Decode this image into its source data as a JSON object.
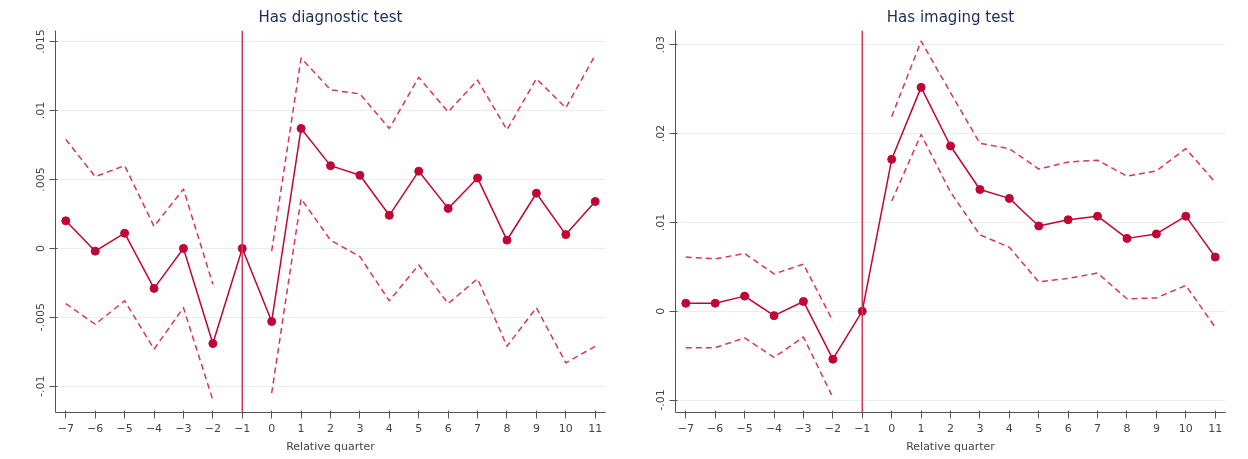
{
  "chart_data": [
    {
      "type": "line",
      "title": "Has diagnostic test",
      "xlabel": "Relative quarter",
      "x": [
        -7,
        -6,
        -5,
        -4,
        -3,
        -2,
        -1,
        0,
        1,
        2,
        3,
        4,
        5,
        6,
        7,
        8,
        9,
        10,
        11
      ],
      "xlim": [
        -7.35,
        11.35
      ],
      "xticks": [
        -7,
        -6,
        -5,
        -4,
        -3,
        -2,
        -1,
        0,
        1,
        2,
        3,
        4,
        5,
        6,
        7,
        8,
        9,
        10,
        11
      ],
      "ylim": [
        -0.0119,
        0.0158
      ],
      "yticks": [
        {
          "value": -0.01,
          "label": "-.01"
        },
        {
          "value": -0.005,
          "label": "-.005"
        },
        0,
        {
          "value": 0.005,
          "label": ".005"
        },
        {
          "value": 0.01,
          "label": ".01"
        },
        {
          "value": 0.015,
          "label": ".015"
        }
      ],
      "grid": "y",
      "series": [
        {
          "color": "#c10534",
          "marker": "circle",
          "line_style": "solid",
          "values": [
            0.002,
            -0.0002,
            0.0011,
            -0.0029,
            0.0,
            -0.0069,
            0.0,
            -0.0053,
            0.0087,
            0.006,
            0.0053,
            0.0024,
            0.0056,
            0.0029,
            0.0051,
            0.0006,
            0.004,
            0.001,
            0.0034
          ]
        },
        {
          "color": "#d6375c",
          "marker": "none",
          "line_style": "dashed",
          "values": [
            0.0079,
            0.0052,
            0.006,
            0.0016,
            0.0043,
            -0.0026,
            null,
            -0.0002,
            0.0138,
            0.0115,
            0.0112,
            0.0087,
            0.0124,
            0.0099,
            0.0122,
            0.0086,
            0.0123,
            0.0102,
            0.014
          ]
        },
        {
          "color": "#d6375c",
          "marker": "none",
          "line_style": "dashed",
          "values": [
            -0.004,
            -0.0055,
            -0.0038,
            -0.0073,
            -0.0043,
            -0.011,
            null,
            -0.0105,
            0.0036,
            0.0006,
            -0.0006,
            -0.0038,
            -0.0012,
            -0.004,
            -0.0022,
            -0.0071,
            -0.0043,
            -0.0083,
            -0.0071
          ]
        }
      ],
      "ref_lines": [
        {
          "axis": "x",
          "value": -1,
          "color": "#d6375c"
        }
      ]
    },
    {
      "type": "line",
      "title": "Has imaging test",
      "xlabel": "Relative quarter",
      "x": [
        -7,
        -6,
        -5,
        -4,
        -3,
        -2,
        -1,
        0,
        1,
        2,
        3,
        4,
        5,
        6,
        7,
        8,
        9,
        10,
        11
      ],
      "xlim": [
        -7.35,
        11.35
      ],
      "xticks": [
        -7,
        -6,
        -5,
        -4,
        -3,
        -2,
        -1,
        0,
        1,
        2,
        3,
        4,
        5,
        6,
        7,
        8,
        9,
        10,
        11
      ],
      "ylim": [
        -0.0114,
        0.0316
      ],
      "yticks": [
        {
          "value": -0.01,
          "label": "-.01"
        },
        0,
        {
          "value": 0.01,
          "label": ".01"
        },
        {
          "value": 0.02,
          "label": ".02"
        },
        {
          "value": 0.03,
          "label": ".03"
        }
      ],
      "grid": "y",
      "series": [
        {
          "color": "#c10534",
          "marker": "circle",
          "line_style": "solid",
          "values": [
            0.0009,
            0.0009,
            0.0017,
            -0.0005,
            0.0011,
            -0.0054,
            0.0,
            0.0171,
            0.0252,
            0.0186,
            0.0137,
            0.0127,
            0.0096,
            0.0103,
            0.0107,
            0.0082,
            0.0087,
            0.0107,
            0.0061
          ]
        },
        {
          "color": "#d6375c",
          "marker": "none",
          "line_style": "dashed",
          "values": [
            0.0061,
            0.0059,
            0.0065,
            0.0042,
            0.0053,
            -0.0011,
            null,
            0.0219,
            0.0304,
            0.0246,
            0.0189,
            0.0183,
            0.016,
            0.0168,
            0.017,
            0.0152,
            0.0158,
            0.0183,
            0.0145
          ]
        },
        {
          "color": "#d6375c",
          "marker": "none",
          "line_style": "dashed",
          "values": [
            -0.0041,
            -0.0041,
            -0.003,
            -0.0052,
            -0.0029,
            -0.0097,
            null,
            0.0124,
            0.0199,
            0.0134,
            0.0086,
            0.0072,
            0.0033,
            0.0037,
            0.0043,
            0.0014,
            0.0015,
            0.0029,
            -0.0018
          ]
        }
      ],
      "ref_lines": [
        {
          "axis": "x",
          "value": -1,
          "color": "#d6375c"
        }
      ]
    }
  ]
}
